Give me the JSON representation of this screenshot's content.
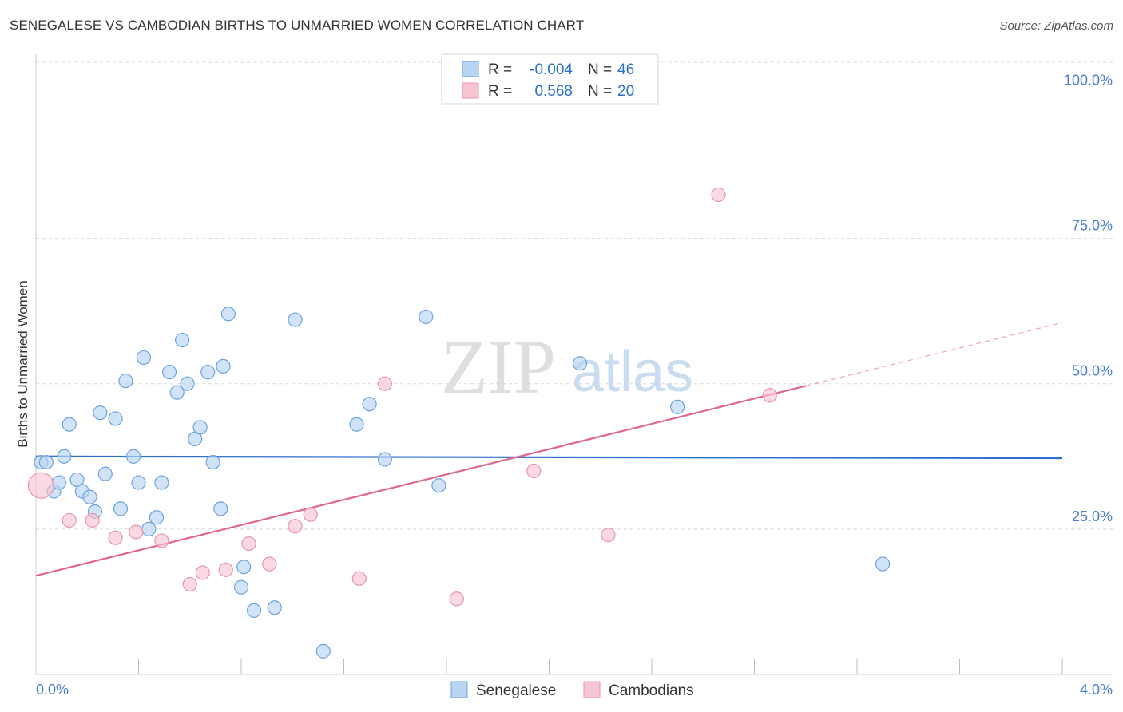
{
  "title": "SENEGALESE VS CAMBODIAN BIRTHS TO UNMARRIED WOMEN CORRELATION CHART",
  "source": "Source: ZipAtlas.com",
  "watermark": {
    "zip": "ZIP",
    "atlas": "atlas"
  },
  "colors": {
    "blue_fill": "#b7d4f3",
    "blue_stroke": "#6ea2dd",
    "blue_line": "#2e6fcb",
    "pink_fill": "#f7c4d2",
    "pink_stroke": "#e994ae",
    "pink_line": "#e0668f",
    "grid": "#d8d8d8",
    "axis_text": "#4a7fc9"
  },
  "legend": {
    "rows": [
      {
        "r_label": "R =",
        "r_value": "-0.004",
        "n_label": "N =",
        "n_value": "46"
      },
      {
        "r_label": "R =",
        "r_value": "0.568",
        "n_label": "N =",
        "n_value": "20"
      }
    ]
  },
  "chart_data": {
    "type": "scatter",
    "title": "SENEGALESE VS CAMBODIAN BIRTHS TO UNMARRIED WOMEN CORRELATION CHART",
    "xlabel": "",
    "ylabel": "Births to Unmarried Women",
    "xlim": [
      0.0,
      4.0
    ],
    "ylim": [
      0,
      105
    ],
    "x_tick_labels": [
      "0.0%",
      "4.0%"
    ],
    "y_ticks": [
      25,
      50,
      75,
      100
    ],
    "y_tick_labels": [
      "25.0%",
      "50.0%",
      "75.0%",
      "100.0%"
    ],
    "series": [
      {
        "name": "Senegalese",
        "r": -0.004,
        "n": 46,
        "trend": {
          "x": [
            0.0,
            4.0
          ],
          "y": [
            37.5,
            37.2
          ],
          "dashed_from": null
        },
        "points": [
          [
            0.02,
            36.5
          ],
          [
            0.04,
            36.5
          ],
          [
            0.07,
            31.5
          ],
          [
            0.09,
            33.0
          ],
          [
            0.11,
            37.5
          ],
          [
            0.13,
            43.0
          ],
          [
            0.16,
            33.5
          ],
          [
            0.18,
            31.5
          ],
          [
            0.21,
            30.5
          ],
          [
            0.23,
            28.0
          ],
          [
            0.25,
            45.0
          ],
          [
            0.27,
            34.5
          ],
          [
            0.31,
            44.0
          ],
          [
            0.33,
            28.5
          ],
          [
            0.35,
            50.5
          ],
          [
            0.38,
            37.5
          ],
          [
            0.4,
            33.0
          ],
          [
            0.42,
            54.5
          ],
          [
            0.44,
            25.0
          ],
          [
            0.47,
            27.0
          ],
          [
            0.49,
            33.0
          ],
          [
            0.52,
            52.0
          ],
          [
            0.55,
            48.5
          ],
          [
            0.57,
            57.5
          ],
          [
            0.59,
            50.0
          ],
          [
            0.62,
            40.5
          ],
          [
            0.64,
            42.5
          ],
          [
            0.67,
            52.0
          ],
          [
            0.69,
            36.5
          ],
          [
            0.72,
            28.5
          ],
          [
            0.73,
            53.0
          ],
          [
            0.75,
            62.0
          ],
          [
            0.8,
            15.0
          ],
          [
            0.81,
            18.5
          ],
          [
            0.85,
            11.0
          ],
          [
            0.93,
            11.5
          ],
          [
            1.01,
            61.0
          ],
          [
            1.12,
            4.0
          ],
          [
            1.25,
            43.0
          ],
          [
            1.3,
            46.5
          ],
          [
            1.36,
            37.0
          ],
          [
            1.52,
            61.5
          ],
          [
            1.57,
            32.5
          ],
          [
            2.12,
            53.5
          ],
          [
            2.5,
            46.0
          ],
          [
            3.3,
            19.0
          ]
        ]
      },
      {
        "name": "Cambodians",
        "r": 0.568,
        "n": 20,
        "trend": {
          "x": [
            0.0,
            4.0
          ],
          "y": [
            17.0,
            60.5
          ],
          "dashed_from": 3.0
        },
        "points": [
          [
            0.02,
            32.5
          ],
          [
            0.13,
            26.5
          ],
          [
            0.22,
            26.5
          ],
          [
            0.31,
            23.5
          ],
          [
            0.39,
            24.5
          ],
          [
            0.49,
            23.0
          ],
          [
            0.6,
            15.5
          ],
          [
            0.65,
            17.5
          ],
          [
            0.74,
            18.0
          ],
          [
            0.83,
            22.5
          ],
          [
            0.91,
            19.0
          ],
          [
            1.01,
            25.5
          ],
          [
            1.07,
            27.5
          ],
          [
            1.26,
            16.5
          ],
          [
            1.36,
            50.0
          ],
          [
            1.64,
            13.0
          ],
          [
            1.94,
            35.0
          ],
          [
            2.23,
            24.0
          ],
          [
            2.66,
            82.5
          ],
          [
            2.86,
            48.0
          ]
        ]
      }
    ]
  },
  "bottom_legend": [
    "Senegalese",
    "Cambodians"
  ]
}
